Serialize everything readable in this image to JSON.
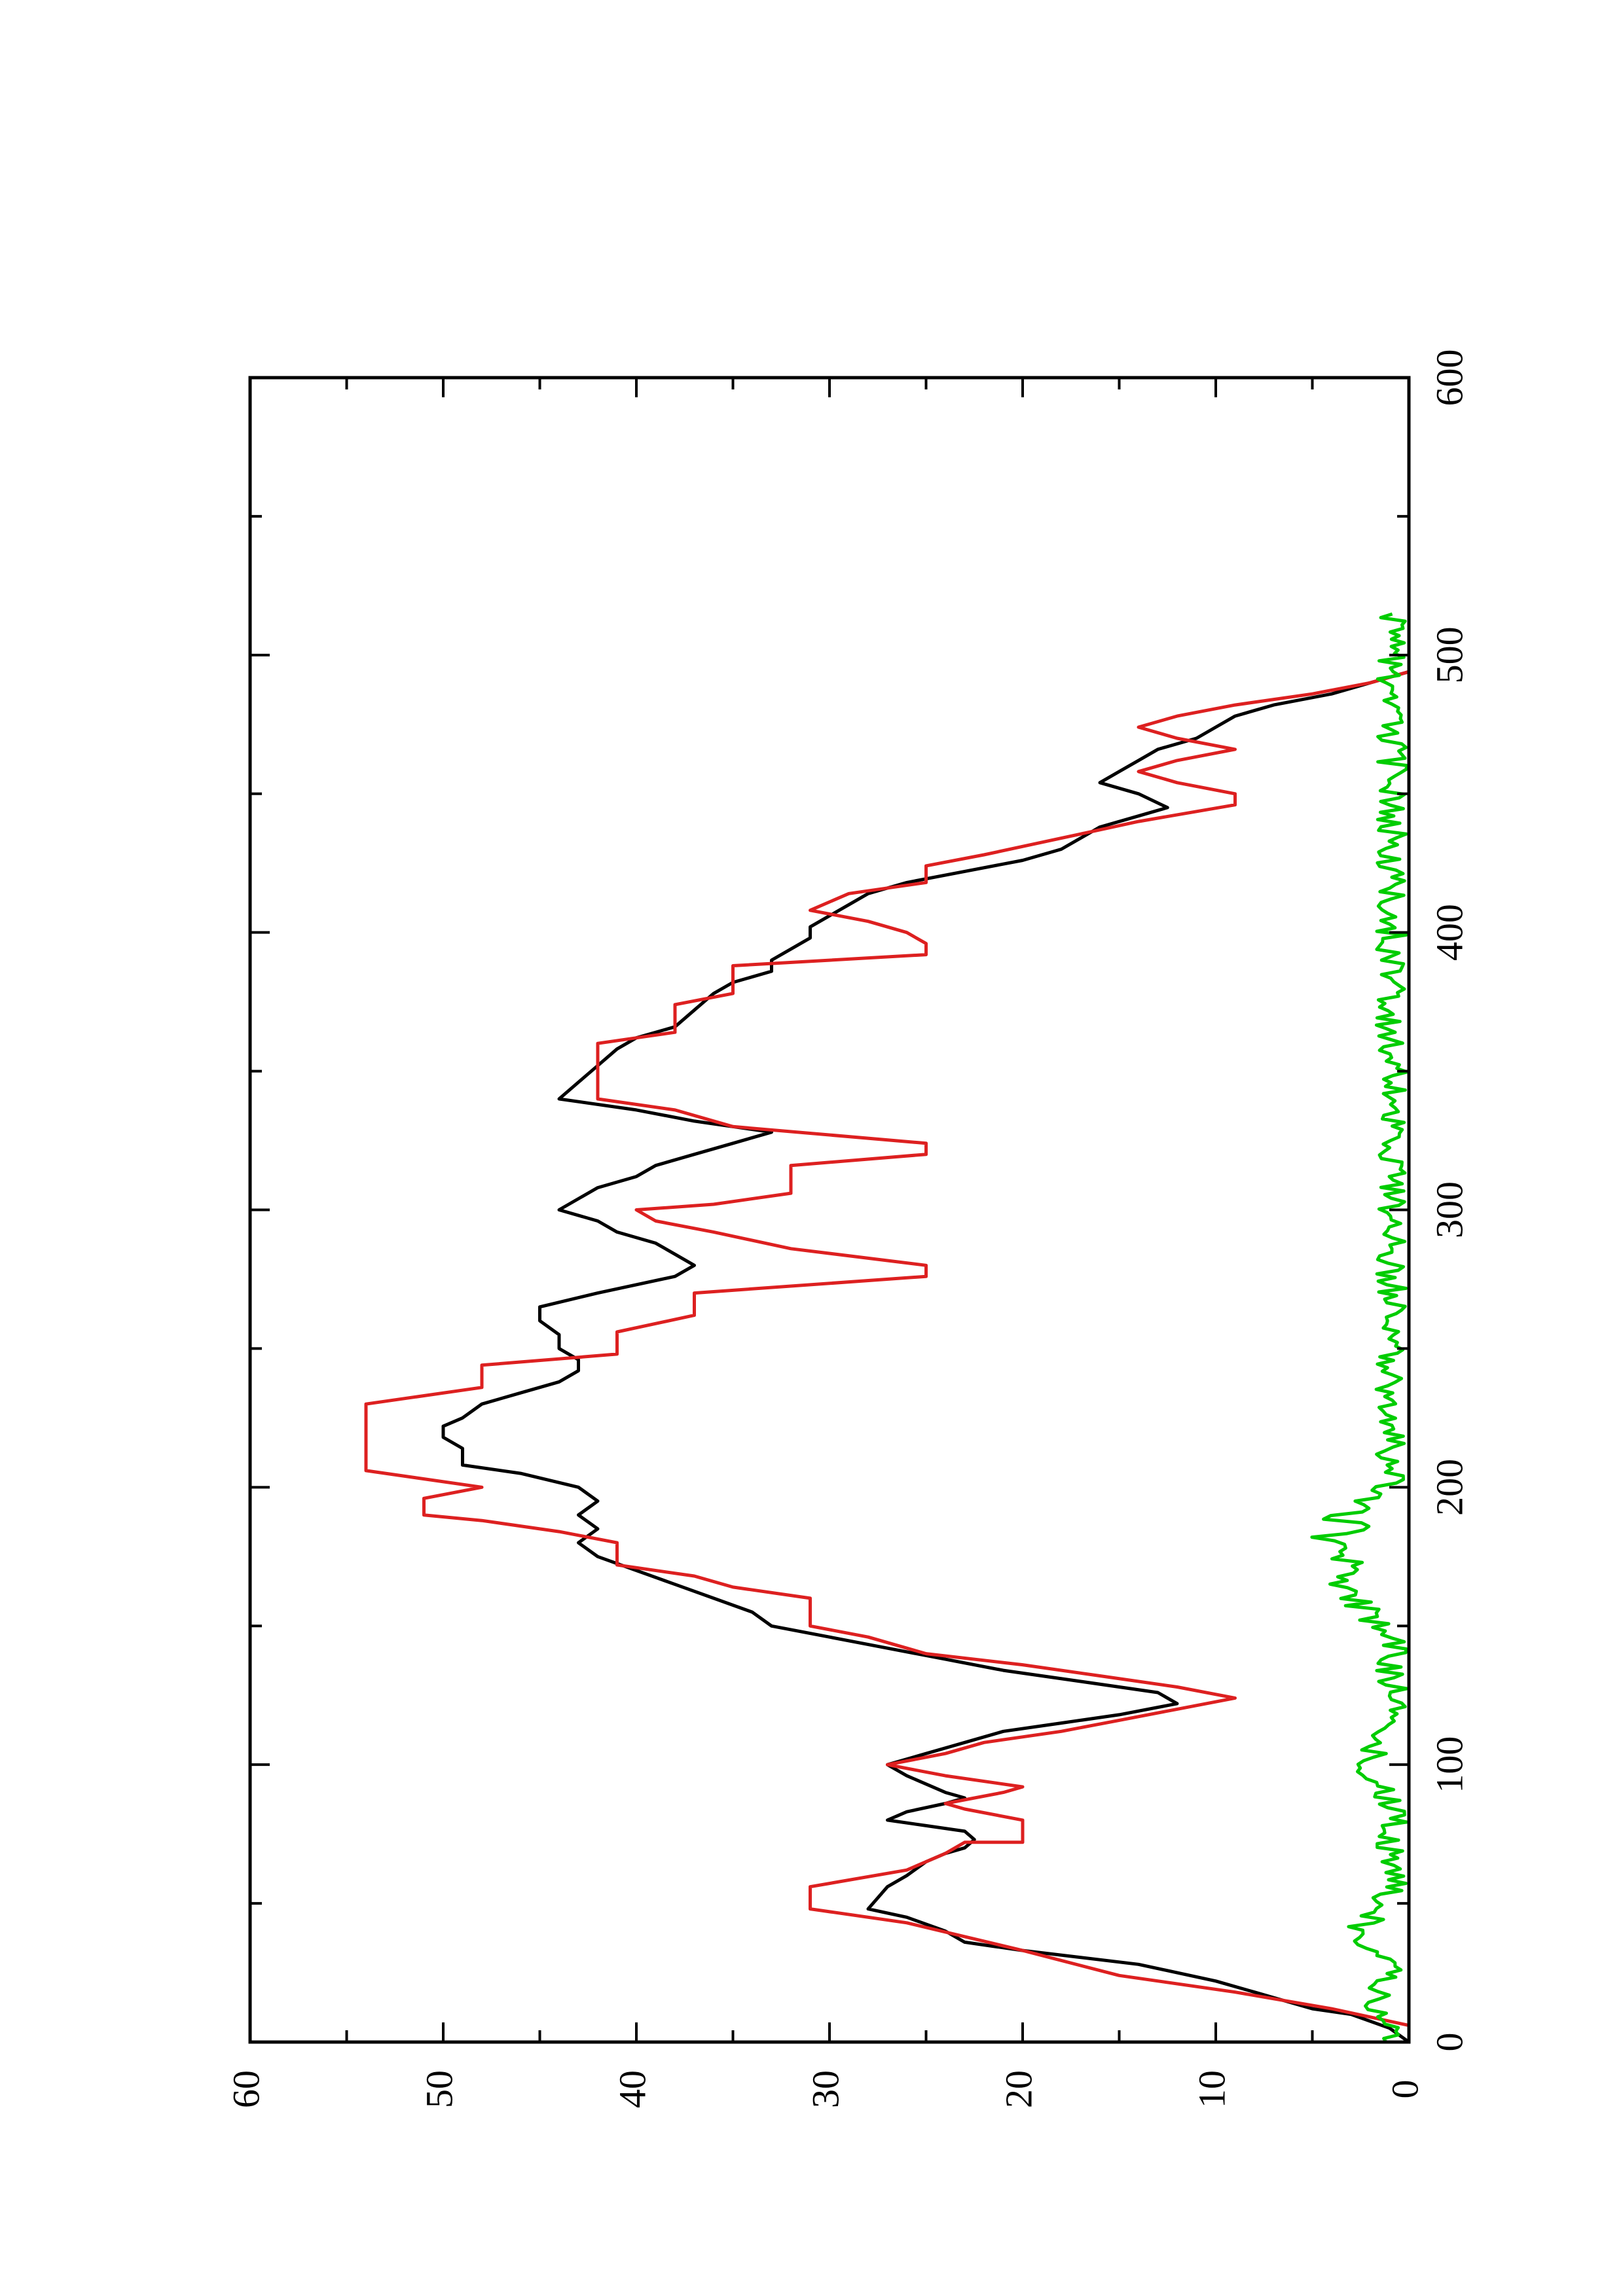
{
  "chart_data": {
    "type": "line",
    "orientation": "rotated-90-ccw",
    "title": "",
    "xlabel": "",
    "ylabel": "",
    "xlim": [
      0,
      600
    ],
    "ylim": [
      0,
      60
    ],
    "x_ticks": [
      0,
      100,
      200,
      300,
      400,
      500,
      600
    ],
    "x_tick_labels": [
      "0",
      "100",
      "200",
      "300",
      "400",
      "500",
      "600"
    ],
    "y_ticks": [
      0,
      10,
      20,
      30,
      40,
      50,
      60
    ],
    "y_tick_labels": [
      "0",
      "10",
      "20",
      "30",
      "40",
      "50",
      "60"
    ],
    "x_minor_step": 50,
    "y_minor_step": 5,
    "grid": false,
    "legend": "none",
    "series": [
      {
        "color": "#000000",
        "points": [
          [
            0,
            0
          ],
          [
            5,
            1
          ],
          [
            10,
            3
          ],
          [
            12,
            5
          ],
          [
            18,
            8
          ],
          [
            22,
            10
          ],
          [
            28,
            14
          ],
          [
            33,
            20
          ],
          [
            36,
            23
          ],
          [
            40,
            24
          ],
          [
            45,
            26
          ],
          [
            48,
            28
          ],
          [
            52,
            27.5
          ],
          [
            56,
            27
          ],
          [
            60,
            26
          ],
          [
            65,
            25
          ],
          [
            68,
            24
          ],
          [
            70,
            23
          ],
          [
            73,
            22.5
          ],
          [
            76,
            23
          ],
          [
            78,
            25
          ],
          [
            80,
            27
          ],
          [
            83,
            26
          ],
          [
            86,
            24
          ],
          [
            88,
            23
          ],
          [
            90,
            24
          ],
          [
            93,
            25
          ],
          [
            96,
            26
          ],
          [
            100,
            27
          ],
          [
            104,
            25
          ],
          [
            108,
            23
          ],
          [
            112,
            21
          ],
          [
            115,
            18
          ],
          [
            118,
            15
          ],
          [
            122,
            12
          ],
          [
            126,
            13
          ],
          [
            130,
            17
          ],
          [
            134,
            21
          ],
          [
            138,
            24
          ],
          [
            142,
            27
          ],
          [
            146,
            30
          ],
          [
            150,
            33
          ],
          [
            155,
            34
          ],
          [
            160,
            36
          ],
          [
            165,
            38
          ],
          [
            170,
            40
          ],
          [
            175,
            42
          ],
          [
            180,
            43
          ],
          [
            185,
            42
          ],
          [
            190,
            43
          ],
          [
            195,
            42
          ],
          [
            200,
            43
          ],
          [
            205,
            46
          ],
          [
            208,
            49
          ],
          [
            214,
            49
          ],
          [
            218,
            50
          ],
          [
            222,
            50
          ],
          [
            225,
            49
          ],
          [
            230,
            48
          ],
          [
            234,
            46
          ],
          [
            238,
            44
          ],
          [
            242,
            43
          ],
          [
            246,
            43
          ],
          [
            250,
            44
          ],
          [
            255,
            44
          ],
          [
            260,
            45
          ],
          [
            265,
            45
          ],
          [
            270,
            42
          ],
          [
            276,
            38
          ],
          [
            280,
            37
          ],
          [
            284,
            38
          ],
          [
            288,
            39
          ],
          [
            292,
            41
          ],
          [
            296,
            42
          ],
          [
            300,
            44
          ],
          [
            304,
            43
          ],
          [
            308,
            42
          ],
          [
            312,
            40
          ],
          [
            316,
            39
          ],
          [
            320,
            37
          ],
          [
            324,
            35
          ],
          [
            328,
            33
          ],
          [
            332,
            37
          ],
          [
            336,
            40
          ],
          [
            340,
            44
          ],
          [
            346,
            43
          ],
          [
            352,
            42
          ],
          [
            358,
            41
          ],
          [
            362,
            40
          ],
          [
            366,
            38
          ],
          [
            372,
            37
          ],
          [
            378,
            36
          ],
          [
            382,
            35
          ],
          [
            386,
            33
          ],
          [
            390,
            33
          ],
          [
            394,
            32
          ],
          [
            398,
            31
          ],
          [
            402,
            31
          ],
          [
            406,
            30
          ],
          [
            410,
            29
          ],
          [
            414,
            28
          ],
          [
            418,
            26
          ],
          [
            422,
            23
          ],
          [
            426,
            20
          ],
          [
            430,
            18
          ],
          [
            434,
            17
          ],
          [
            438,
            16
          ],
          [
            442,
            14
          ],
          [
            445,
            12.5
          ],
          [
            450,
            14
          ],
          [
            454,
            16
          ],
          [
            458,
            15
          ],
          [
            462,
            14
          ],
          [
            466,
            13
          ],
          [
            470,
            11
          ],
          [
            474,
            10
          ],
          [
            478,
            9
          ],
          [
            482,
            7
          ],
          [
            486,
            4
          ],
          [
            490,
            2
          ],
          [
            494,
            0
          ]
        ]
      },
      {
        "color": "#dd2020",
        "points": [
          [
            0,
            0
          ],
          [
            6,
            0
          ],
          [
            12,
            4
          ],
          [
            18,
            9
          ],
          [
            24,
            15
          ],
          [
            33,
            20
          ],
          [
            38,
            23
          ],
          [
            43,
            26
          ],
          [
            48,
            31
          ],
          [
            56,
            31
          ],
          [
            62,
            26
          ],
          [
            68,
            24
          ],
          [
            72,
            23
          ],
          [
            72,
            20
          ],
          [
            80,
            20
          ],
          [
            84,
            23
          ],
          [
            86,
            24
          ],
          [
            90,
            21
          ],
          [
            92,
            20
          ],
          [
            96,
            24
          ],
          [
            100,
            27
          ],
          [
            104,
            24
          ],
          [
            108,
            22
          ],
          [
            112,
            18
          ],
          [
            116,
            15
          ],
          [
            120,
            12
          ],
          [
            124,
            9
          ],
          [
            128,
            12
          ],
          [
            132,
            16
          ],
          [
            136,
            20
          ],
          [
            140,
            25
          ],
          [
            146,
            28
          ],
          [
            150,
            31
          ],
          [
            160,
            31
          ],
          [
            164,
            35
          ],
          [
            168,
            37
          ],
          [
            172,
            41
          ],
          [
            180,
            41
          ],
          [
            184,
            44
          ],
          [
            188,
            48
          ],
          [
            190,
            51
          ],
          [
            196,
            51
          ],
          [
            200,
            48
          ],
          [
            206,
            54
          ],
          [
            230,
            54
          ],
          [
            236,
            48
          ],
          [
            244,
            48
          ],
          [
            248,
            41
          ],
          [
            256,
            41
          ],
          [
            262,
            37
          ],
          [
            270,
            37
          ],
          [
            276,
            25
          ],
          [
            280,
            25
          ],
          [
            286,
            32
          ],
          [
            292,
            36
          ],
          [
            296,
            39
          ],
          [
            300,
            40
          ],
          [
            302,
            36
          ],
          [
            306,
            32
          ],
          [
            316,
            32
          ],
          [
            320,
            25
          ],
          [
            324,
            25
          ],
          [
            330,
            35
          ],
          [
            336,
            38
          ],
          [
            340,
            42
          ],
          [
            360,
            42
          ],
          [
            364,
            38
          ],
          [
            374,
            38
          ],
          [
            378,
            35
          ],
          [
            388,
            35
          ],
          [
            392,
            25
          ],
          [
            396,
            25
          ],
          [
            400,
            26
          ],
          [
            404,
            28
          ],
          [
            408,
            31
          ],
          [
            414,
            29
          ],
          [
            418,
            25
          ],
          [
            424,
            25
          ],
          [
            428,
            22
          ],
          [
            434,
            18
          ],
          [
            440,
            14
          ],
          [
            446,
            9
          ],
          [
            450,
            9
          ],
          [
            454,
            12
          ],
          [
            458,
            14
          ],
          [
            462,
            12
          ],
          [
            466,
            9
          ],
          [
            470,
            12
          ],
          [
            474,
            14
          ],
          [
            478,
            12
          ],
          [
            482,
            9
          ],
          [
            486,
            5
          ],
          [
            490,
            2
          ],
          [
            494,
            0
          ]
        ]
      },
      {
        "color": "#00cc00",
        "baseline_mean": 0.9,
        "noise_amplitude": 0.8,
        "bumps": [
          [
            15,
            1.5
          ],
          [
            40,
            2.2
          ],
          [
            100,
            2.2
          ],
          [
            160,
            2.5
          ],
          [
            170,
            2.2
          ],
          [
            180,
            2.8
          ],
          [
            190,
            2.5
          ]
        ],
        "x_range": [
          0,
          516
        ],
        "step": 1.3
      }
    ]
  }
}
